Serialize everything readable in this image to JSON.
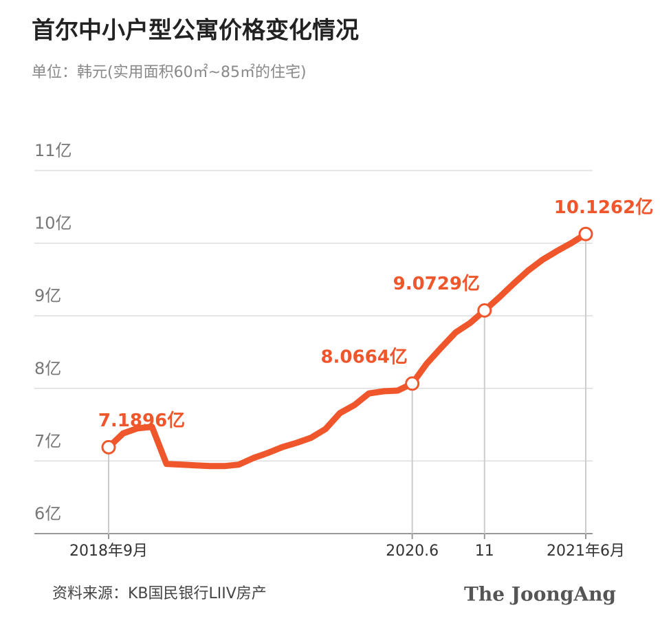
{
  "chart_data": {
    "type": "line",
    "title": "首尔中小户型公寓价格变化情况",
    "subtitle": "单位：韩元(实用面积60㎡~85㎡的住宅)",
    "source": "资料来源：KB国民银行LIIV房产",
    "brand": "The JoongAng",
    "categories": [
      "2018年9月",
      null,
      null,
      null,
      null,
      null,
      null,
      null,
      null,
      null,
      null,
      null,
      null,
      null,
      null,
      null,
      null,
      null,
      null,
      null,
      null,
      "2020.6",
      null,
      null,
      null,
      null,
      "11",
      null,
      null,
      null,
      null,
      null,
      null,
      "2021年6月"
    ],
    "values": [
      7.1896,
      7.38,
      7.45,
      7.47,
      6.96,
      6.95,
      6.94,
      6.93,
      6.93,
      6.95,
      7.04,
      7.11,
      7.19,
      7.25,
      7.32,
      7.44,
      7.66,
      7.77,
      7.93,
      7.96,
      7.97,
      8.0664,
      8.34,
      8.56,
      8.77,
      8.9,
      9.0729,
      9.25,
      9.44,
      9.62,
      9.77,
      9.89,
      10.0,
      10.1262
    ],
    "value_labels": [
      "7.1896亿",
      null,
      null,
      null,
      null,
      null,
      null,
      null,
      null,
      null,
      null,
      null,
      null,
      null,
      null,
      null,
      null,
      null,
      null,
      null,
      null,
      "8.0664亿",
      null,
      null,
      null,
      null,
      "9.0729亿",
      null,
      null,
      null,
      null,
      null,
      null,
      "10.1262亿"
    ],
    "color": "#f0562b",
    "ylim": [
      6,
      11
    ],
    "yticks": [
      {
        "value": 6,
        "label": "6亿"
      },
      {
        "value": 7,
        "label": "7亿"
      },
      {
        "value": 8,
        "label": "8亿"
      },
      {
        "value": 9,
        "label": "9亿"
      },
      {
        "value": 10,
        "label": "10亿"
      },
      {
        "value": 11,
        "label": "11亿"
      }
    ],
    "grid": true
  }
}
